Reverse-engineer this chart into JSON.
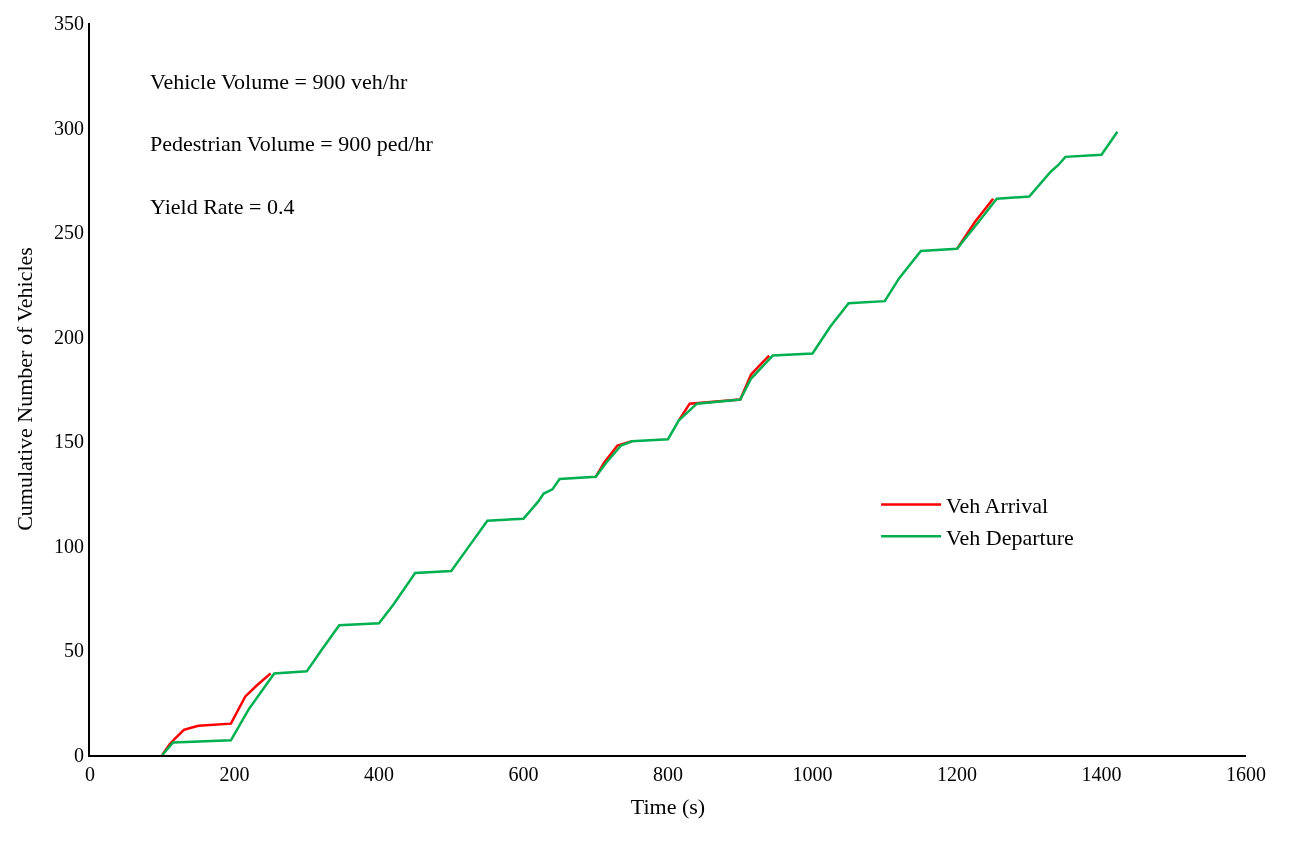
{
  "chart_data": {
    "type": "line",
    "xlabel": "Time (s)",
    "ylabel": "Cumulative Number of Vehicles",
    "annotations": [
      "Vehicle Volume = 900 veh/hr",
      "Pedestrian Volume = 900 ped/hr",
      "Yield Rate = 0.4"
    ],
    "series": [
      {
        "name": "Veh Arrival",
        "color": "#ff0000",
        "x": [
          100,
          110,
          118,
          130,
          140,
          150,
          195,
          215,
          230,
          250,
          300,
          320,
          345,
          400,
          420,
          450,
          500,
          525,
          550,
          600,
          620,
          628,
          640,
          650,
          700,
          712,
          730,
          750,
          800,
          815,
          830,
          900,
          915,
          940,
          1000,
          1025,
          1050,
          1100,
          1120,
          1150,
          1200,
          1225,
          1250
        ],
        "values": [
          0,
          5,
          8,
          12,
          13,
          14,
          15,
          28,
          33,
          39,
          null,
          null,
          null,
          null,
          null,
          null,
          null,
          null,
          null,
          null,
          null,
          null,
          null,
          null,
          133,
          140,
          148,
          150,
          null,
          160,
          168,
          170,
          182,
          191,
          null,
          null,
          null,
          null,
          null,
          null,
          242,
          255,
          266
        ]
      },
      {
        "name": "Veh Departure",
        "color": "#00b050",
        "x": [
          100,
          115,
          195,
          220,
          255,
          300,
          320,
          345,
          400,
          420,
          450,
          500,
          525,
          550,
          600,
          620,
          628,
          640,
          650,
          700,
          715,
          735,
          750,
          800,
          815,
          840,
          900,
          915,
          945,
          1000,
          1025,
          1050,
          1100,
          1120,
          1150,
          1200,
          1230,
          1255,
          1300,
          1330,
          1340,
          1350,
          1400,
          1422
        ],
        "values": [
          0,
          6,
          7,
          22,
          39,
          40,
          50,
          62,
          63,
          72,
          87,
          88,
          100,
          112,
          113,
          121,
          125,
          127,
          132,
          133,
          140,
          148,
          150,
          151,
          160,
          168,
          170,
          180,
          191,
          192,
          205,
          216,
          217,
          228,
          241,
          242,
          255,
          266,
          267,
          279,
          282,
          286,
          287,
          298
        ]
      }
    ],
    "xlim": [
      0,
      1600
    ],
    "xticks": [
      0,
      200,
      400,
      600,
      800,
      1000,
      1200,
      1400,
      1600
    ],
    "ylim": [
      0,
      350
    ],
    "yticks": [
      0,
      50,
      100,
      150,
      200,
      250,
      300,
      350
    ],
    "legend": "right",
    "marker": "none",
    "line_style": "solid"
  }
}
